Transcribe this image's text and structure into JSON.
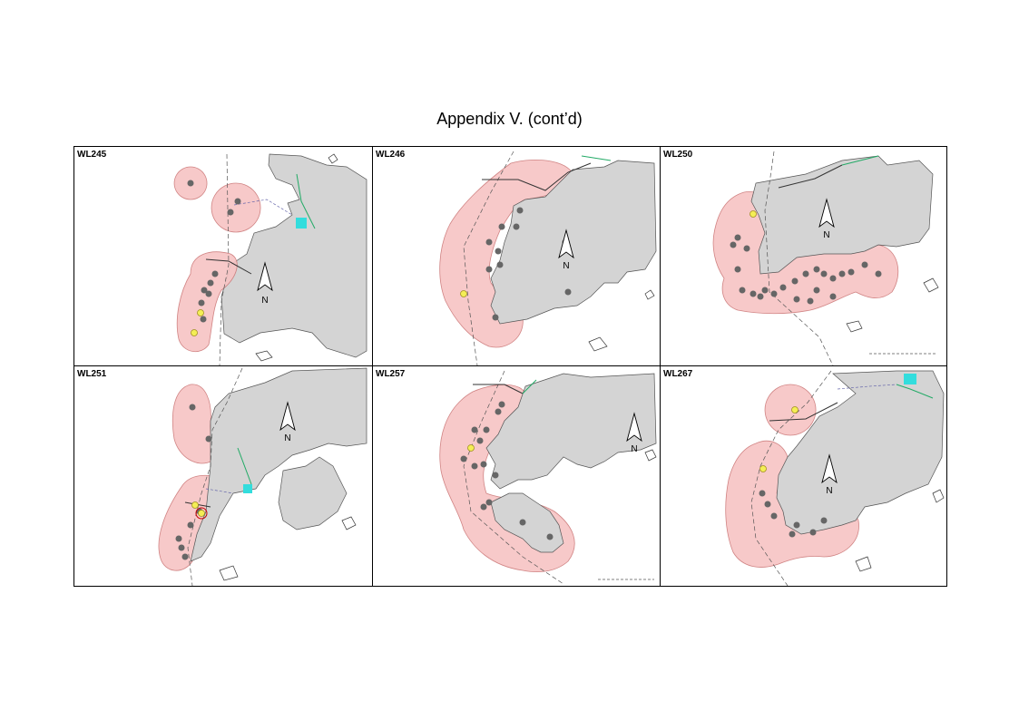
{
  "page": {
    "title": "Appendix V.  (cont’d)"
  },
  "panels": [
    {
      "id": "WL245",
      "label": "WL245"
    },
    {
      "id": "WL246",
      "label": "WL246"
    },
    {
      "id": "WL250",
      "label": "WL250"
    },
    {
      "id": "WL251",
      "label": "WL251"
    },
    {
      "id": "WL257",
      "label": "WL257"
    },
    {
      "id": "WL267",
      "label": "WL267"
    }
  ],
  "north_arrow_label": "N",
  "colors": {
    "land": "#d4d4d4",
    "home_range": "#f7c4c4",
    "home_range_edge": "#cc7777",
    "sighting": "#666666",
    "sighting_highlight": "#f4ee55",
    "reclamation_cyan": "#33dddd"
  }
}
